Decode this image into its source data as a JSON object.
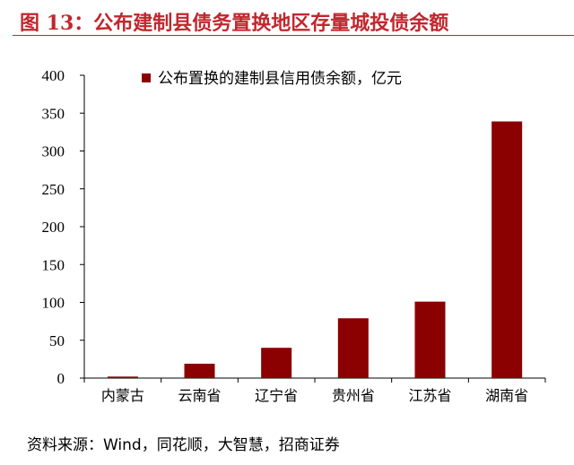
{
  "figure": {
    "title": "图 13：公布建制县债务置换地区存量城投债余额",
    "source": "资料来源：Wind，同花顺，大智慧，招商证券"
  },
  "colors": {
    "title": "#c1272d",
    "bar": "#8b0000",
    "axis": "#000000"
  },
  "chart_data": {
    "type": "bar",
    "title": "",
    "xlabel": "",
    "ylabel": "",
    "categories": [
      "内蒙古",
      "云南省",
      "辽宁省",
      "贵州省",
      "江苏省",
      "湖南省"
    ],
    "series": [
      {
        "name": "公布置换的建制县信用债余额，亿元",
        "values": [
          2,
          19,
          40,
          79,
          101,
          339
        ]
      }
    ],
    "ylim": [
      0,
      400
    ],
    "yticks": [
      0,
      50,
      100,
      150,
      200,
      250,
      300,
      350,
      400
    ],
    "grid": false,
    "legend": "top-left"
  }
}
